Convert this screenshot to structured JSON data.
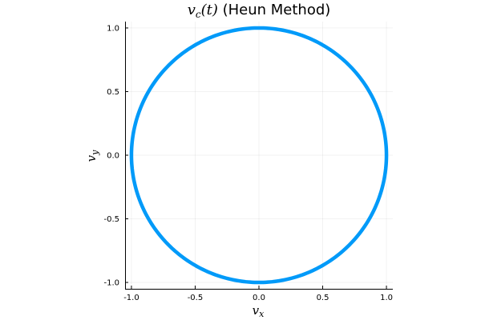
{
  "chart_data": {
    "type": "line",
    "title_var": "v",
    "title_sub": "c",
    "title_arg": "(t)",
    "title_rest": " (Heun Method)",
    "xlabel_var": "v",
    "xlabel_sub": "x",
    "ylabel_var": "v",
    "ylabel_sub": "y",
    "xlim": [
      -1.05,
      1.05
    ],
    "ylim": [
      -1.05,
      1.05
    ],
    "xticks": [
      -1.0,
      -0.5,
      0.0,
      0.5,
      1.0
    ],
    "yticks": [
      -1.0,
      -0.5,
      0.0,
      0.5,
      1.0
    ],
    "xtick_labels": [
      "-1.0",
      "-0.5",
      "0.0",
      "0.5",
      "1.0"
    ],
    "ytick_labels": [
      "-1.0",
      "-0.5",
      "0.0",
      "0.5",
      "1.0"
    ],
    "grid": true,
    "aspect": "equal",
    "series_color": "#009af9",
    "series": [
      {
        "curve": "unit-circle",
        "radius": 1.0,
        "center": [
          0.0,
          0.0
        ]
      }
    ]
  }
}
